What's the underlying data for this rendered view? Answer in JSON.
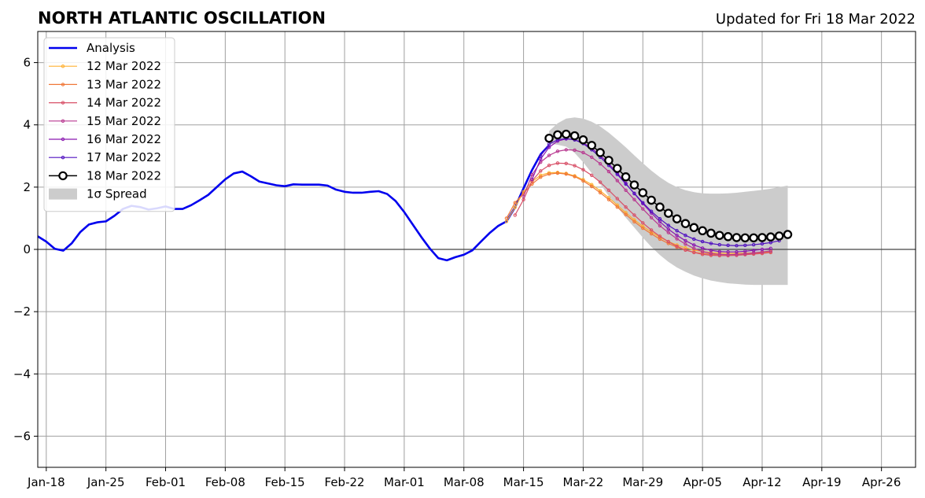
{
  "chart_data": {
    "type": "line",
    "title": "NORTH ATLANTIC OSCILLATION",
    "subtitle": "Updated for Fri 18 Mar 2022",
    "xlabel": "",
    "ylabel": "",
    "x_range": [
      "2022-01-17",
      "2022-04-30"
    ],
    "ylim": [
      -7,
      7
    ],
    "x_ticks": [
      {
        "date": "2022-01-18",
        "label": "Jan-18"
      },
      {
        "date": "2022-01-25",
        "label": "Jan-25"
      },
      {
        "date": "2022-02-01",
        "label": "Feb-01"
      },
      {
        "date": "2022-02-08",
        "label": "Feb-08"
      },
      {
        "date": "2022-02-15",
        "label": "Feb-15"
      },
      {
        "date": "2022-02-22",
        "label": "Feb-22"
      },
      {
        "date": "2022-03-01",
        "label": "Mar-01"
      },
      {
        "date": "2022-03-08",
        "label": "Mar-08"
      },
      {
        "date": "2022-03-15",
        "label": "Mar-15"
      },
      {
        "date": "2022-03-22",
        "label": "Mar-22"
      },
      {
        "date": "2022-03-29",
        "label": "Mar-29"
      },
      {
        "date": "2022-04-05",
        "label": "Apr-05"
      },
      {
        "date": "2022-04-12",
        "label": "Apr-12"
      },
      {
        "date": "2022-04-19",
        "label": "Apr-19"
      },
      {
        "date": "2022-04-26",
        "label": "Apr-26"
      }
    ],
    "y_ticks": [
      {
        "value": 6,
        "label": "6"
      },
      {
        "value": 4,
        "label": "4"
      },
      {
        "value": 2,
        "label": "2"
      },
      {
        "value": 0,
        "label": "0"
      },
      {
        "value": -2,
        "label": "−2"
      },
      {
        "value": -4,
        "label": "−4"
      },
      {
        "value": -6,
        "label": "−6"
      }
    ],
    "grid": true,
    "zero_line": true,
    "legend_position": "top-left",
    "analysis": {
      "name": "Analysis",
      "color": "#0000ee",
      "start_date": "2022-01-17",
      "values": [
        0.42,
        0.25,
        0.02,
        -0.04,
        0.2,
        0.56,
        0.8,
        0.87,
        0.9,
        1.08,
        1.3,
        1.4,
        1.36,
        1.28,
        1.32,
        1.38,
        1.3,
        1.3,
        1.42,
        1.58,
        1.75,
        2.0,
        2.25,
        2.44,
        2.5,
        2.35,
        2.18,
        2.12,
        2.06,
        2.03,
        2.09,
        2.08,
        2.08,
        2.08,
        2.05,
        1.92,
        1.85,
        1.82,
        1.82,
        1.85,
        1.87,
        1.78,
        1.55,
        1.2,
        0.8,
        0.4,
        0.03,
        -0.28,
        -0.35,
        -0.25,
        -0.17,
        -0.03,
        0.25,
        0.52,
        0.75,
        0.9,
        1.35,
        1.96,
        2.55,
        3.05,
        3.35
      ]
    },
    "series": [
      {
        "name": "12 Mar 2022",
        "color": "#ffb030",
        "start_date": "2022-03-13",
        "values": [
          0.9,
          1.35,
          1.85,
          2.18,
          2.38,
          2.46,
          2.47,
          2.44,
          2.36,
          2.24,
          2.08,
          1.88,
          1.66,
          1.42,
          1.18,
          0.95,
          0.74,
          0.56,
          0.39,
          0.25,
          0.14,
          0.05,
          -0.02,
          -0.07,
          -0.1,
          -0.12,
          -0.13,
          -0.13,
          -0.12,
          -0.11,
          -0.1,
          -0.08
        ]
      },
      {
        "name": "13 Mar 2022",
        "color": "#f07838",
        "start_date": "2022-03-13",
        "values": [
          1.0,
          1.5,
          1.8,
          2.1,
          2.32,
          2.42,
          2.45,
          2.42,
          2.34,
          2.2,
          2.02,
          1.82,
          1.6,
          1.36,
          1.12,
          0.89,
          0.68,
          0.5,
          0.33,
          0.19,
          0.07,
          -0.02,
          -0.09,
          -0.13,
          -0.16,
          -0.17,
          -0.17,
          -0.16,
          -0.15,
          -0.13,
          -0.11,
          -0.09
        ]
      },
      {
        "name": "14 Mar 2022",
        "color": "#d85068",
        "start_date": "2022-03-14",
        "values": [
          1.1,
          1.6,
          2.2,
          2.52,
          2.7,
          2.77,
          2.76,
          2.69,
          2.56,
          2.38,
          2.16,
          1.9,
          1.63,
          1.36,
          1.1,
          0.85,
          0.62,
          0.42,
          0.25,
          0.1,
          -0.02,
          -0.1,
          -0.16,
          -0.19,
          -0.2,
          -0.2,
          -0.19,
          -0.17,
          -0.15,
          -0.13,
          -0.1
        ]
      },
      {
        "name": "15 Mar 2022",
        "color": "#b83890",
        "start_date": "2022-03-15",
        "values": [
          1.7,
          2.4,
          2.8,
          3.02,
          3.15,
          3.2,
          3.19,
          3.11,
          2.96,
          2.75,
          2.5,
          2.21,
          1.9,
          1.6,
          1.3,
          1.02,
          0.76,
          0.54,
          0.34,
          0.17,
          0.03,
          -0.07,
          -0.13,
          -0.16,
          -0.17,
          -0.16,
          -0.14,
          -0.11,
          -0.08,
          -0.05
        ]
      },
      {
        "name": "16 Mar 2022",
        "color": "#8a18b0",
        "start_date": "2022-03-16",
        "values": [
          2.25,
          2.9,
          3.28,
          3.48,
          3.55,
          3.52,
          3.42,
          3.25,
          3.02,
          2.75,
          2.45,
          2.12,
          1.79,
          1.47,
          1.17,
          0.89,
          0.65,
          0.45,
          0.28,
          0.14,
          0.04,
          -0.03,
          -0.07,
          -0.08,
          -0.08,
          -0.06,
          -0.03,
          0.0,
          0.03
        ]
      },
      {
        "name": "17 Mar 2022",
        "color": "#5010c0",
        "start_date": "2022-03-17",
        "values": [
          3.0,
          3.38,
          3.52,
          3.56,
          3.52,
          3.4,
          3.2,
          2.96,
          2.7,
          2.41,
          2.1,
          1.8,
          1.5,
          1.22,
          0.98,
          0.77,
          0.6,
          0.45,
          0.33,
          0.25,
          0.19,
          0.15,
          0.13,
          0.12,
          0.13,
          0.15,
          0.18,
          0.22,
          0.28
        ]
      },
      {
        "name": "18 Mar 2022",
        "color": "#000000",
        "start_date": "2022-03-18",
        "values": [
          3.57,
          3.68,
          3.7,
          3.65,
          3.52,
          3.34,
          3.11,
          2.86,
          2.6,
          2.33,
          2.07,
          1.82,
          1.58,
          1.36,
          1.16,
          0.98,
          0.83,
          0.7,
          0.6,
          0.52,
          0.45,
          0.41,
          0.38,
          0.37,
          0.37,
          0.38,
          0.4,
          0.43,
          0.48
        ]
      }
    ],
    "spread": {
      "name": "1σ Spread",
      "color": "#cccccc",
      "start_date": "2022-03-18",
      "upper": [
        3.8,
        4.05,
        4.2,
        4.24,
        4.2,
        4.1,
        3.95,
        3.75,
        3.52,
        3.28,
        3.02,
        2.77,
        2.53,
        2.32,
        2.14,
        2.0,
        1.9,
        1.84,
        1.8,
        1.79,
        1.79,
        1.8,
        1.82,
        1.85,
        1.88,
        1.91,
        1.95,
        2.0,
        2.05
      ],
      "lower": [
        3.4,
        3.36,
        3.3,
        3.1,
        2.8,
        2.45,
        2.1,
        1.72,
        1.36,
        1.02,
        0.7,
        0.38,
        0.08,
        -0.18,
        -0.4,
        -0.58,
        -0.72,
        -0.84,
        -0.93,
        -1.0,
        -1.05,
        -1.09,
        -1.11,
        -1.13,
        -1.14,
        -1.14,
        -1.14,
        -1.14,
        -1.14
      ]
    }
  }
}
